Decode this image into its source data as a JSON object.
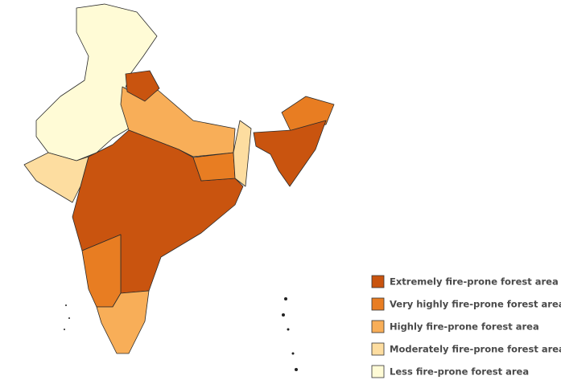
{
  "legend": {
    "items": [
      {
        "label": "Extremely fire-prone forest area",
        "color": "#c9540f"
      },
      {
        "label": "Very highly fire-prone forest area",
        "color": "#e87d22"
      },
      {
        "label": "Highly fire-prone forest area",
        "color": "#f8ae58"
      },
      {
        "label": "Moderately fire-prone forest area",
        "color": "#fddda0"
      },
      {
        "label": "Less fire-prone forest area",
        "color": "#fffbd6"
      }
    ]
  }
}
